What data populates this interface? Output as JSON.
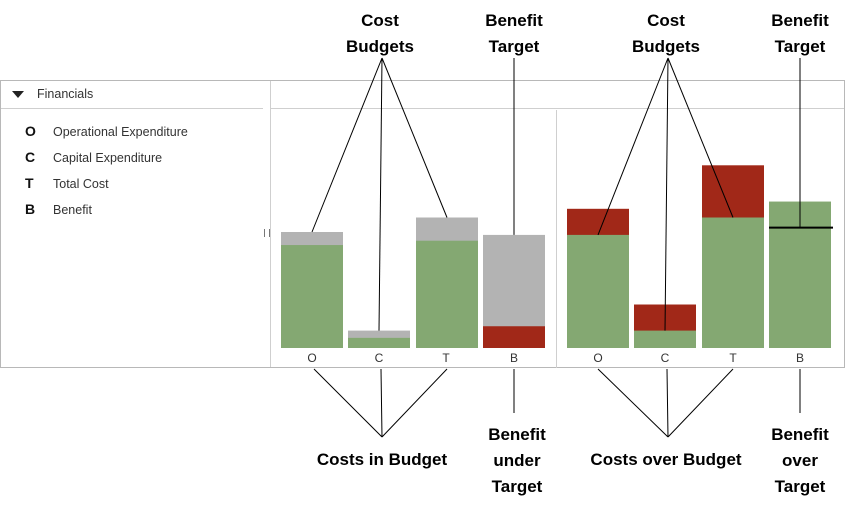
{
  "panel": {
    "header_title": "Financials",
    "legend": [
      {
        "key": "O",
        "label": "Operational Expenditure"
      },
      {
        "key": "C",
        "label": "Capital Expenditure"
      },
      {
        "key": "T",
        "label": "Total Cost"
      },
      {
        "key": "B",
        "label": "Benefit"
      }
    ]
  },
  "colors": {
    "green": "#84a872",
    "grey": "#b3b3b3",
    "red": "#a12818"
  },
  "chart_data": [
    {
      "type": "bar",
      "categories": [
        "O",
        "C",
        "T",
        "B"
      ],
      "bars": [
        {
          "green": 0.71,
          "grey_top": 0.8,
          "red": 0
        },
        {
          "green": 0.07,
          "grey_top": 0.12,
          "red": 0
        },
        {
          "green": 0.74,
          "grey_top": 0.9,
          "red": 0
        },
        {
          "green": 0,
          "grey_top": 0.78,
          "red": 0.15
        }
      ]
    },
    {
      "type": "bar",
      "categories": [
        "O",
        "C",
        "T",
        "B"
      ],
      "bars": [
        {
          "green": 0.78,
          "red_top": 0.96,
          "target": null
        },
        {
          "green": 0.12,
          "red_top": 0.3,
          "target": null
        },
        {
          "green": 0.9,
          "red_top": 1.26,
          "target": null
        },
        {
          "green": 1.01,
          "red_top": 0,
          "target": 0.83
        }
      ]
    }
  ],
  "annotations": {
    "top": [
      {
        "text": "Cost\nBudgets"
      },
      {
        "text": "Benefit\nTarget"
      },
      {
        "text": "Cost\nBudgets"
      },
      {
        "text": "Benefit\nTarget"
      }
    ],
    "bottom": [
      {
        "text": "Costs  in Budget"
      },
      {
        "text": "Benefit\nunder\nTarget"
      },
      {
        "text": "Costs  over Budget"
      },
      {
        "text": "Benefit\nover\nTarget"
      }
    ]
  }
}
